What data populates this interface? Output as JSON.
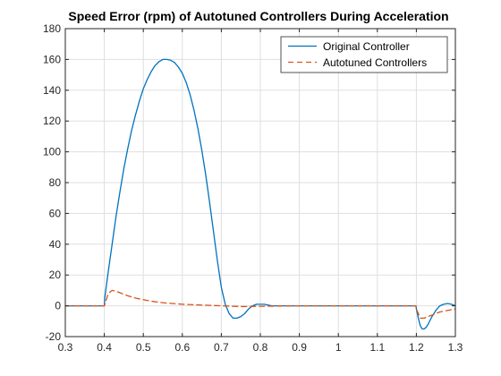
{
  "chart_data": {
    "type": "line",
    "title": "Speed Error (rpm) of Autotuned Controllers During Acceleration",
    "xlabel": "",
    "ylabel": "",
    "xlim": [
      0.3,
      1.3
    ],
    "ylim": [
      -20,
      180
    ],
    "xticks": [
      0.3,
      0.4,
      0.5,
      0.6,
      0.7,
      0.8,
      0.9,
      1.0,
      1.1,
      1.2,
      1.3
    ],
    "xtick_labels": [
      "0.3",
      "0.4",
      "0.5",
      "0.6",
      "0.7",
      "0.8",
      "0.9",
      "1",
      "1.1",
      "1.2",
      "1.3"
    ],
    "yticks": [
      -20,
      0,
      20,
      40,
      60,
      80,
      100,
      120,
      140,
      160,
      180
    ],
    "ytick_labels": [
      "-20",
      "0",
      "20",
      "40",
      "60",
      "80",
      "100",
      "120",
      "140",
      "160",
      "180"
    ],
    "grid": true,
    "legend_position": "top-right",
    "series": [
      {
        "name": "Original Controller",
        "color": "#0072BD",
        "style": "solid",
        "x": [
          0.3,
          0.4,
          0.401,
          0.41,
          0.42,
          0.43,
          0.44,
          0.45,
          0.46,
          0.47,
          0.48,
          0.49,
          0.5,
          0.51,
          0.52,
          0.53,
          0.54,
          0.55,
          0.56,
          0.57,
          0.58,
          0.59,
          0.6,
          0.61,
          0.62,
          0.63,
          0.64,
          0.65,
          0.66,
          0.67,
          0.68,
          0.69,
          0.7,
          0.71,
          0.72,
          0.73,
          0.74,
          0.75,
          0.76,
          0.77,
          0.78,
          0.79,
          0.8,
          0.81,
          0.82,
          0.83,
          0.84,
          0.85,
          0.9,
          1.0,
          1.1,
          1.199,
          1.2,
          1.205,
          1.21,
          1.215,
          1.22,
          1.225,
          1.23,
          1.24,
          1.25,
          1.26,
          1.27,
          1.28,
          1.29,
          1.3
        ],
        "y": [
          0,
          0,
          5,
          22,
          40,
          58,
          74,
          89,
          102,
          114,
          124,
          133,
          141,
          147,
          152,
          156,
          158.5,
          160,
          160,
          159.5,
          158,
          155,
          151,
          145,
          137,
          127,
          115,
          101,
          85,
          67,
          48,
          29,
          12,
          1,
          -5,
          -8,
          -8,
          -7,
          -5,
          -2,
          0,
          1,
          1,
          1,
          0.5,
          0,
          0,
          0,
          0,
          0,
          0,
          0,
          -2,
          -8,
          -13,
          -15,
          -15,
          -14,
          -12,
          -7,
          -3,
          0,
          1,
          1.5,
          1,
          0
        ]
      },
      {
        "name": "Autotuned Controllers",
        "color": "#D95319",
        "style": "dashed",
        "x": [
          0.3,
          0.4,
          0.41,
          0.42,
          0.43,
          0.44,
          0.45,
          0.46,
          0.48,
          0.5,
          0.52,
          0.55,
          0.6,
          0.65,
          0.7,
          0.75,
          0.8,
          0.9,
          1.0,
          1.1,
          1.199,
          1.2,
          1.21,
          1.22,
          1.23,
          1.24,
          1.25,
          1.26,
          1.27,
          1.28,
          1.29,
          1.3
        ],
        "y": [
          0,
          0,
          8,
          10,
          9.5,
          8.5,
          7.5,
          6.5,
          5,
          4,
          3,
          2,
          1,
          0.5,
          0,
          -0.5,
          -0.3,
          0,
          0,
          0,
          0,
          -2,
          -8,
          -8,
          -7,
          -6,
          -5,
          -4,
          -3.5,
          -3,
          -2.5,
          -2
        ]
      }
    ]
  }
}
